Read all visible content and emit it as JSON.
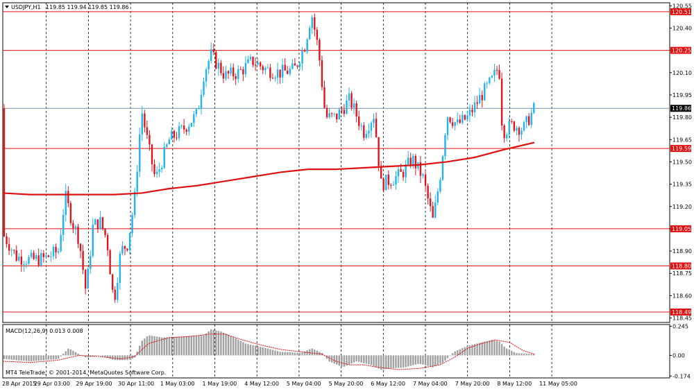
{
  "header": {
    "symbol": "USDJPY,H1",
    "ohlc": "119.85 119.94 119.85 119.86"
  },
  "macd_header": "MACD(12,26,9) 0.013 0.008",
  "copyright": "MT4 TeleTrade, © 2001-2014, MetaQuotes Software Corp.",
  "colors": {
    "bull": "#1eb4f0",
    "bear": "#e0141e",
    "ma": "#e01010",
    "level": "#e01010",
    "bid": "#7890a8",
    "grid": "#000000",
    "hist": "#a0a0a0",
    "signal": "#e01010"
  },
  "chart_data": [
    {
      "type": "candlestick",
      "title": "USDJPY,H1",
      "y_ticks": [
        "120.55",
        "120.40",
        "120.25",
        "120.10",
        "119.95",
        "119.80",
        "119.65",
        "119.50",
        "119.35",
        "119.20",
        "119.05",
        "118.90",
        "118.75",
        "118.60",
        "118.45"
      ],
      "ylim": [
        118.42,
        120.57
      ],
      "x_ticks": [
        "28 Apr 2015",
        "29 Apr 03:00",
        "29 Apr 19:00",
        "30 Apr 11:00",
        "1 May 03:00",
        "1 May 19:00",
        "4 May 12:00",
        "5 May 04:00",
        "5 May 20:00",
        "6 May 12:00",
        "7 May 04:00",
        "7 May 20:00",
        "8 May 12:00",
        "11 May 05:00"
      ],
      "levels": [
        {
          "price": 120.51,
          "label": "120.51"
        },
        {
          "price": 120.25,
          "label": "120.25"
        },
        {
          "price": 119.59,
          "label": "119.59"
        },
        {
          "price": 119.05,
          "label": "119.05"
        },
        {
          "price": 118.8,
          "label": "118.80"
        },
        {
          "price": 118.49,
          "label": "118.49"
        }
      ],
      "bid": {
        "price": 119.86,
        "label": "119.86"
      },
      "moving_average": [
        [
          0,
          119.29
        ],
        [
          40,
          119.28
        ],
        [
          80,
          119.28
        ],
        [
          120,
          119.28
        ],
        [
          160,
          119.28
        ],
        [
          200,
          119.29
        ],
        [
          240,
          119.32
        ],
        [
          280,
          119.34
        ],
        [
          320,
          119.37
        ],
        [
          360,
          119.4
        ],
        [
          400,
          119.43
        ],
        [
          440,
          119.45
        ],
        [
          480,
          119.45
        ],
        [
          520,
          119.46
        ],
        [
          560,
          119.47
        ],
        [
          600,
          119.48
        ],
        [
          640,
          119.5
        ],
        [
          680,
          119.53
        ],
        [
          720,
          119.58
        ],
        [
          766,
          119.63
        ]
      ],
      "candles_anchor": [
        [
          2,
          119.0
        ],
        [
          20,
          118.86
        ],
        [
          40,
          118.84
        ],
        [
          60,
          118.85
        ],
        [
          80,
          118.9
        ],
        [
          90,
          119.27
        ],
        [
          100,
          119.1
        ],
        [
          110,
          118.98
        ],
        [
          120,
          118.62
        ],
        [
          130,
          119.07
        ],
        [
          140,
          119.1
        ],
        [
          150,
          118.98
        ],
        [
          160,
          118.55
        ],
        [
          170,
          118.9
        ],
        [
          180,
          118.95
        ],
        [
          190,
          119.25
        ],
        [
          200,
          119.85
        ],
        [
          210,
          119.6
        ],
        [
          220,
          119.38
        ],
        [
          240,
          119.65
        ],
        [
          260,
          119.72
        ],
        [
          280,
          119.82
        ],
        [
          290,
          120.1
        ],
        [
          300,
          120.22
        ],
        [
          320,
          120.08
        ],
        [
          340,
          120.1
        ],
        [
          360,
          120.18
        ],
        [
          380,
          120.12
        ],
        [
          400,
          120.1
        ],
        [
          420,
          120.12
        ],
        [
          435,
          120.28
        ],
        [
          445,
          120.5
        ],
        [
          455,
          120.25
        ],
        [
          465,
          119.8
        ],
        [
          480,
          119.8
        ],
        [
          500,
          119.92
        ],
        [
          520,
          119.7
        ],
        [
          535,
          119.82
        ],
        [
          545,
          119.35
        ],
        [
          560,
          119.38
        ],
        [
          575,
          119.42
        ],
        [
          590,
          119.52
        ],
        [
          605,
          119.4
        ],
        [
          620,
          119.1
        ],
        [
          630,
          119.4
        ],
        [
          640,
          119.82
        ],
        [
          655,
          119.75
        ],
        [
          670,
          119.8
        ],
        [
          690,
          119.95
        ],
        [
          705,
          120.05
        ],
        [
          715,
          120.15
        ],
        [
          720,
          119.7
        ],
        [
          735,
          119.75
        ],
        [
          750,
          119.72
        ],
        [
          766,
          119.86
        ]
      ]
    },
    {
      "type": "macd",
      "title": "MACD(12,26,9) 0.013 0.008",
      "y_ticks": [
        "0.245",
        "0.00",
        "-0.174"
      ],
      "ylim": [
        -0.19,
        0.26
      ],
      "histogram": [
        [
          0,
          -0.03
        ],
        [
          40,
          -0.05
        ],
        [
          80,
          -0.03
        ],
        [
          95,
          0.06
        ],
        [
          110,
          0.01
        ],
        [
          120,
          -0.02
        ],
        [
          140,
          0.0
        ],
        [
          160,
          -0.04
        ],
        [
          180,
          -0.04
        ],
        [
          190,
          -0.02
        ],
        [
          200,
          0.12
        ],
        [
          210,
          0.17
        ],
        [
          230,
          0.15
        ],
        [
          260,
          0.16
        ],
        [
          290,
          0.17
        ],
        [
          300,
          0.22
        ],
        [
          315,
          0.2
        ],
        [
          330,
          0.16
        ],
        [
          350,
          0.1
        ],
        [
          380,
          0.06
        ],
        [
          400,
          0.03
        ],
        [
          430,
          0.02
        ],
        [
          445,
          0.06
        ],
        [
          460,
          0.02
        ],
        [
          470,
          -0.05
        ],
        [
          490,
          -0.1
        ],
        [
          510,
          -0.05
        ],
        [
          530,
          -0.08
        ],
        [
          545,
          -0.12
        ],
        [
          560,
          -0.11
        ],
        [
          580,
          -0.1
        ],
        [
          600,
          -0.07
        ],
        [
          620,
          -0.1
        ],
        [
          635,
          -0.06
        ],
        [
          650,
          0.03
        ],
        [
          670,
          0.08
        ],
        [
          690,
          0.11
        ],
        [
          705,
          0.13
        ],
        [
          715,
          0.12
        ],
        [
          725,
          0.06
        ],
        [
          740,
          0.02
        ],
        [
          766,
          0.01
        ]
      ],
      "signal": [
        [
          0,
          -0.05
        ],
        [
          40,
          -0.06
        ],
        [
          80,
          -0.04
        ],
        [
          110,
          0.0
        ],
        [
          140,
          -0.01
        ],
        [
          170,
          -0.03
        ],
        [
          190,
          -0.01
        ],
        [
          210,
          0.1
        ],
        [
          240,
          0.15
        ],
        [
          270,
          0.16
        ],
        [
          300,
          0.18
        ],
        [
          320,
          0.18
        ],
        [
          340,
          0.14
        ],
        [
          370,
          0.09
        ],
        [
          400,
          0.05
        ],
        [
          430,
          0.03
        ],
        [
          460,
          0.01
        ],
        [
          480,
          -0.05
        ],
        [
          500,
          -0.08
        ],
        [
          520,
          -0.08
        ],
        [
          540,
          -0.1
        ],
        [
          570,
          -0.12
        ],
        [
          600,
          -0.11
        ],
        [
          630,
          -0.08
        ],
        [
          650,
          -0.02
        ],
        [
          670,
          0.06
        ],
        [
          690,
          0.1
        ],
        [
          710,
          0.13
        ],
        [
          730,
          0.11
        ],
        [
          750,
          0.04
        ],
        [
          766,
          0.01
        ]
      ]
    }
  ]
}
